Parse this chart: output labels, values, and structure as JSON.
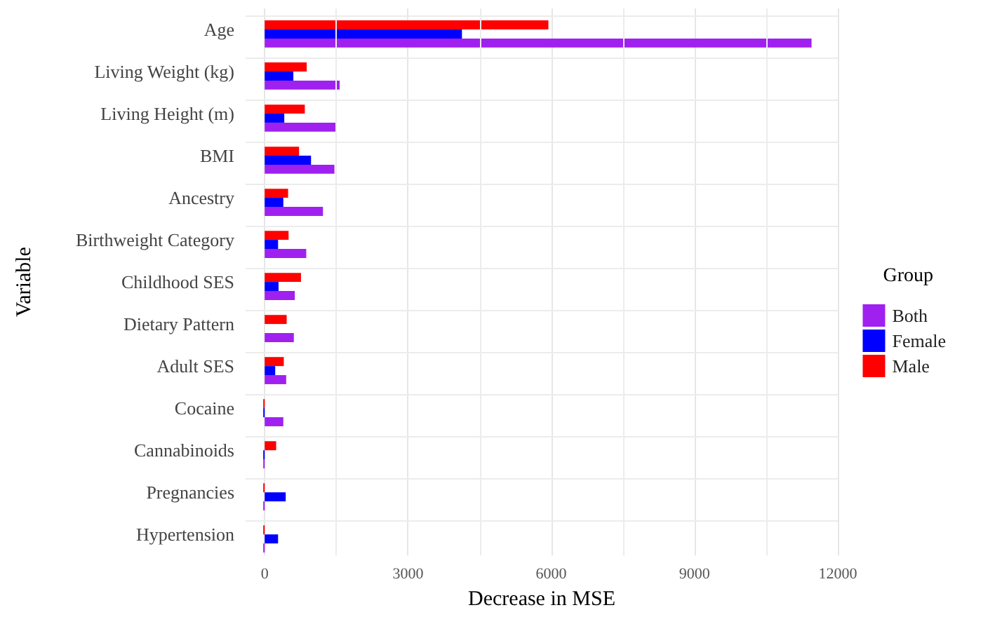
{
  "chart_data": {
    "type": "bar",
    "orientation": "horizontal",
    "xlabel": "Decrease in MSE",
    "ylabel": "Variable",
    "legend_title": "Group",
    "categories": [
      "Age",
      "Living Weight (kg)",
      "Living Height (m)",
      "BMI",
      "Ancestry",
      "Birthweight Category",
      "Childhood SES",
      "Dietary Pattern",
      "Adult SES",
      "Cocaine",
      "Cannabinoids",
      "Pregnancies",
      "Hypertension"
    ],
    "series": [
      {
        "name": "Both",
        "color": "#a020f0",
        "values": [
          11450,
          1570,
          1490,
          1460,
          1220,
          870,
          630,
          610,
          450,
          390,
          -30,
          -30,
          -30
        ]
      },
      {
        "name": "Female",
        "color": "#0000ff",
        "values": [
          4130,
          600,
          410,
          970,
          390,
          280,
          290,
          null,
          220,
          -30,
          -30,
          440,
          280
        ]
      },
      {
        "name": "Male",
        "color": "#ff0000",
        "values": [
          5940,
          880,
          840,
          720,
          490,
          500,
          760,
          460,
          400,
          -30,
          240,
          -30,
          -30
        ]
      }
    ],
    "xlim": [
      -400,
      12000
    ],
    "xticks": [
      0,
      3000,
      6000,
      9000,
      12000
    ],
    "grid": true,
    "legend": "right"
  }
}
